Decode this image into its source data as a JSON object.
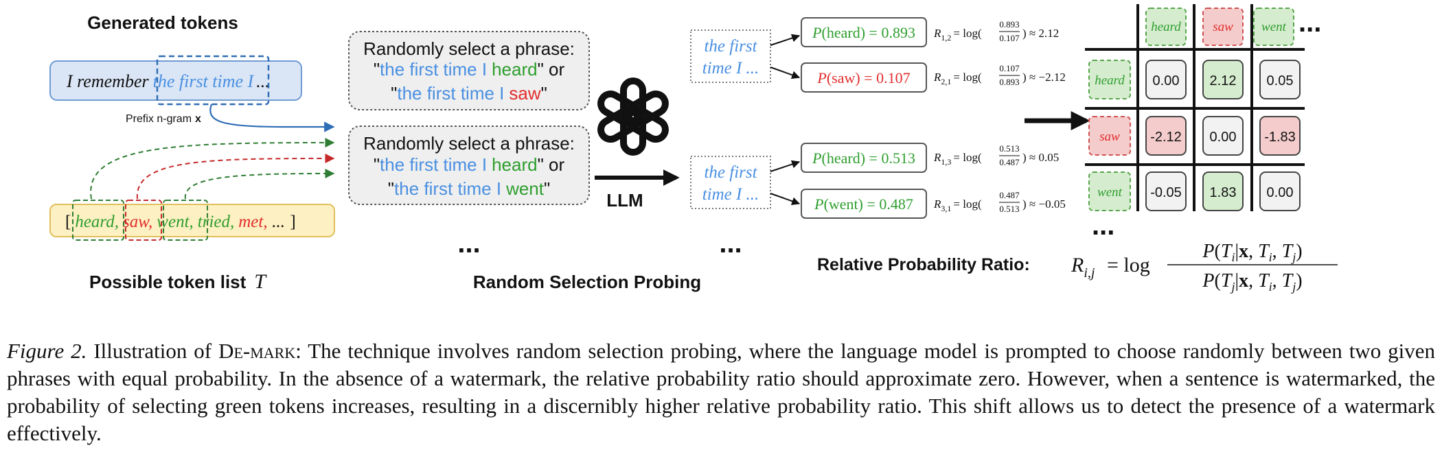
{
  "left": {
    "title": "Generated tokens",
    "sentence_prefix": "I remember",
    "sentence_ngram": "the first time I",
    "sentence_suffix": "...",
    "prefix_label": "Prefix n-gram",
    "prefix_var": "x",
    "token_list": {
      "open": "[",
      "close": "]",
      "items": [
        {
          "text": "heard,",
          "color": "#2e9e2e"
        },
        {
          "text": "saw,",
          "color": "#e22d2d"
        },
        {
          "text": "went,",
          "color": "#2e9e2e"
        },
        {
          "text": "tried,",
          "color": "#2e9e2e"
        },
        {
          "text": "met,",
          "color": "#e22d2d"
        },
        {
          "text": "...",
          "color": "#111111"
        }
      ]
    },
    "list_label": "Possible token list",
    "list_var": "T"
  },
  "prompts": [
    {
      "head": "Randomly select a phrase:",
      "q1": "\"",
      "base": "the first time I",
      "w1": "heard",
      "w1_color": "#2e9e2e",
      "mid": "\" or",
      "q2": "\"",
      "w2": "saw",
      "w2_color": "#e22d2d",
      "end": "\""
    },
    {
      "head": "Randomly select a phrase:",
      "q1": "\"",
      "base": "the first time I",
      "w1": "heard",
      "w1_color": "#2e9e2e",
      "mid": "\" or",
      "q2": "\"",
      "w2": "went",
      "w2_color": "#2e9e2e",
      "end": "\""
    }
  ],
  "middle": {
    "ellipsis": "...",
    "label": "Random Selection Probing",
    "llm_label": "LLM",
    "llm_icon": "openai-logo-icon"
  },
  "probe": {
    "ellipsis": "...",
    "context_line1": "the first",
    "context_line2": "time I ...",
    "groups": [
      {
        "probs": [
          {
            "token": "heard",
            "value": "0.893",
            "color": "#2e9e2e"
          },
          {
            "token": "saw",
            "value": "0.107",
            "color": "#e22d2d"
          }
        ],
        "ratios": [
          {
            "sub": "1,2",
            "num": "0.893",
            "den": "0.107",
            "result": "2.12"
          },
          {
            "sub": "2,1",
            "num": "0.107",
            "den": "0.893",
            "result": "−2.12"
          }
        ]
      },
      {
        "probs": [
          {
            "token": "heard",
            "value": "0.513",
            "color": "#2e9e2e"
          },
          {
            "token": "went",
            "value": "0.487",
            "color": "#2e9e2e"
          }
        ],
        "ratios": [
          {
            "sub": "1,3",
            "num": "0.513",
            "den": "0.487",
            "result": "0.05"
          },
          {
            "sub": "3,1",
            "num": "0.487",
            "den": "0.513",
            "result": "−0.05"
          }
        ]
      }
    ]
  },
  "matrix": {
    "cols": [
      {
        "text": "heard",
        "type": "green"
      },
      {
        "text": "saw",
        "type": "red"
      },
      {
        "text": "went",
        "type": "green"
      }
    ],
    "rows": [
      {
        "text": "heard",
        "type": "green"
      },
      {
        "text": "saw",
        "type": "red"
      },
      {
        "text": "went",
        "type": "green"
      }
    ],
    "cells": [
      [
        {
          "v": "0.00",
          "t": "neutral"
        },
        {
          "v": "2.12",
          "t": "green"
        },
        {
          "v": "0.05",
          "t": "neutral"
        }
      ],
      [
        {
          "v": "-2.12",
          "t": "red"
        },
        {
          "v": "0.00",
          "t": "neutral"
        },
        {
          "v": "-1.83",
          "t": "red"
        }
      ],
      [
        {
          "v": "-0.05",
          "t": "neutral"
        },
        {
          "v": "1.83",
          "t": "green"
        },
        {
          "v": "0.00",
          "t": "neutral"
        }
      ]
    ],
    "ellipsis_right": "...",
    "ellipsis_bottom": "...",
    "formula_label": "Relative Probability Ratio:"
  },
  "caption": {
    "label": "Figure 2.",
    "lead": "Illustration of",
    "name": "De-mark",
    "text": ": The technique involves random selection probing, where the language model is prompted to choose randomly between two given phrases with equal probability. In the absence of a watermark, the relative probability ratio should approximate zero. However, when a sentence is watermarked, the probability of selecting green tokens increases, resulting in a discernibly higher relative probability ratio. This shift allows us to detect the presence of a watermark effectively."
  },
  "colors": {
    "blue": "#4a90e2",
    "green": "#2e9e2e",
    "red": "#e22d2d",
    "green_fill": "#d5eccf",
    "red_fill": "#f4cccc",
    "neutral_fill": "#f2f2f2",
    "sentence_fill": "#dae6f6",
    "list_fill": "#fdf0c2",
    "prompt_fill": "#efefef"
  }
}
